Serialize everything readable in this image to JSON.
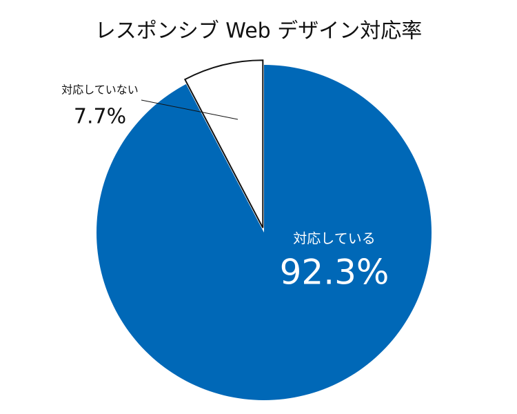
{
  "chart_data": {
    "type": "pie",
    "title": "レスポンシブ Web デザイン対応率",
    "categories": [
      "対応している",
      "対応していない"
    ],
    "values": [
      92.3,
      7.7
    ],
    "value_labels": [
      "92.3%",
      "7.7%"
    ],
    "colors": [
      "#0068b7",
      "#ffffff"
    ]
  }
}
